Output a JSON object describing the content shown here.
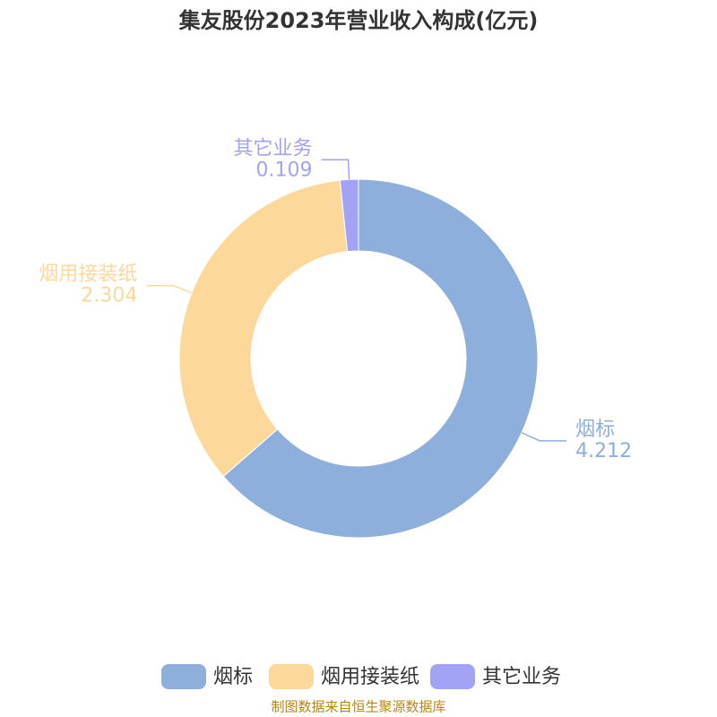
{
  "chart_data": {
    "type": "pie",
    "title": "集友股份2023年营业收入构成(亿元)",
    "categories": [
      "烟标",
      "烟用接装纸",
      "其它业务"
    ],
    "values": [
      4.212,
      2.304,
      0.109
    ],
    "colors": [
      "#8eaedb",
      "#fdd89b",
      "#a3a3f5"
    ],
    "source": "制图数据来自恒生聚源数据库"
  }
}
